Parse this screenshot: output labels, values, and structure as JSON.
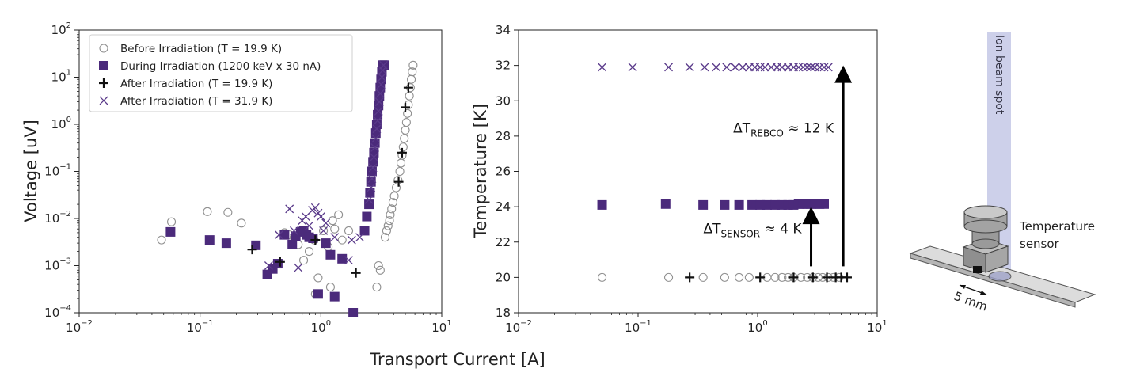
{
  "figure": {
    "xlabel_shared": "Transport Current [A]"
  },
  "chart_data": [
    {
      "type": "scatter",
      "title": "",
      "xlabel": "Transport Current [A]",
      "ylabel": "Voltage [uV]",
      "xscale": "log",
      "yscale": "log",
      "xlim": [
        0.01,
        10
      ],
      "ylim": [
        0.0001,
        100
      ],
      "xticks": [
        {
          "value": 0.01,
          "base": "10",
          "exp": "−2"
        },
        {
          "value": 0.1,
          "base": "10",
          "exp": "−1"
        },
        {
          "value": 1,
          "base": "10",
          "exp": "0"
        },
        {
          "value": 10,
          "base": "10",
          "exp": "1"
        }
      ],
      "yticks": [
        {
          "value": 0.0001,
          "base": "10",
          "exp": "−4"
        },
        {
          "value": 0.001,
          "base": "10",
          "exp": "−3"
        },
        {
          "value": 0.01,
          "base": "10",
          "exp": "−2"
        },
        {
          "value": 0.1,
          "base": "10",
          "exp": "−1"
        },
        {
          "value": 1,
          "base": "10",
          "exp": "0"
        },
        {
          "value": 10,
          "base": "10",
          "exp": "1"
        },
        {
          "value": 100,
          "base": "10",
          "exp": "2"
        }
      ],
      "grid": false,
      "legend": "top-left",
      "series": [
        {
          "name": "Before Irradiation (T = 19.9 K)",
          "marker": "circle",
          "color": "#909090",
          "points": [
            [
              0.048,
              0.0035
            ],
            [
              0.058,
              0.0085
            ],
            [
              0.115,
              0.014
            ],
            [
              0.17,
              0.0135
            ],
            [
              0.22,
              0.008
            ],
            [
              0.5,
              0.005
            ],
            [
              0.55,
              0.0045
            ],
            [
              0.6,
              0.004
            ],
            [
              0.65,
              0.0028
            ],
            [
              0.72,
              0.0013
            ],
            [
              0.8,
              0.002
            ],
            [
              0.88,
              0.0035
            ],
            [
              0.9,
              0.00025
            ],
            [
              0.95,
              0.00055
            ],
            [
              1.05,
              0.0055
            ],
            [
              1.15,
              0.0025
            ],
            [
              1.2,
              0.00035
            ],
            [
              1.25,
              0.009
            ],
            [
              1.3,
              0.006
            ],
            [
              1.4,
              0.012
            ],
            [
              1.5,
              0.0035
            ],
            [
              1.7,
              0.0055
            ],
            [
              2.9,
              0.00035
            ],
            [
              3.0,
              0.001
            ],
            [
              3.1,
              0.0008
            ],
            [
              3.4,
              0.004
            ],
            [
              3.5,
              0.0055
            ],
            [
              3.6,
              0.007
            ],
            [
              3.7,
              0.009
            ],
            [
              3.75,
              0.012
            ],
            [
              3.85,
              0.016
            ],
            [
              3.95,
              0.022
            ],
            [
              4.05,
              0.03
            ],
            [
              4.2,
              0.045
            ],
            [
              4.35,
              0.065
            ],
            [
              4.5,
              0.1
            ],
            [
              4.6,
              0.15
            ],
            [
              4.7,
              0.22
            ],
            [
              4.8,
              0.33
            ],
            [
              4.9,
              0.5
            ],
            [
              5.0,
              0.75
            ],
            [
              5.1,
              1.1
            ],
            [
              5.2,
              1.7
            ],
            [
              5.3,
              2.6
            ],
            [
              5.4,
              4.0
            ],
            [
              5.5,
              6.0
            ],
            [
              5.6,
              9.0
            ],
            [
              5.7,
              13.0
            ],
            [
              5.8,
              18.0
            ]
          ]
        },
        {
          "name": "During Irradiation (1200 keV x 30 nA)",
          "marker": "square",
          "color": "#4b2a7b",
          "points": [
            [
              0.057,
              0.0052
            ],
            [
              0.12,
              0.0035
            ],
            [
              0.165,
              0.003
            ],
            [
              0.29,
              0.0027
            ],
            [
              0.36,
              0.00065
            ],
            [
              0.4,
              0.00085
            ],
            [
              0.44,
              0.0011
            ],
            [
              0.5,
              0.0045
            ],
            [
              0.58,
              0.0028
            ],
            [
              0.62,
              0.0042
            ],
            [
              0.68,
              0.0052
            ],
            [
              0.72,
              0.0055
            ],
            [
              0.76,
              0.0045
            ],
            [
              0.8,
              0.004
            ],
            [
              0.86,
              0.0038
            ],
            [
              0.95,
              0.00025
            ],
            [
              1.1,
              0.003
            ],
            [
              1.2,
              0.0017
            ],
            [
              1.3,
              0.00022
            ],
            [
              1.5,
              0.0014
            ],
            [
              1.85,
              0.0001
            ],
            [
              2.3,
              0.0055
            ],
            [
              2.4,
              0.011
            ],
            [
              2.5,
              0.02
            ],
            [
              2.55,
              0.035
            ],
            [
              2.6,
              0.06
            ],
            [
              2.65,
              0.1
            ],
            [
              2.7,
              0.16
            ],
            [
              2.75,
              0.25
            ],
            [
              2.8,
              0.4
            ],
            [
              2.85,
              0.65
            ],
            [
              2.9,
              1.0
            ],
            [
              2.95,
              1.6
            ],
            [
              3.0,
              2.5
            ],
            [
              3.05,
              4.0
            ],
            [
              3.1,
              6.0
            ],
            [
              3.15,
              9.0
            ],
            [
              3.2,
              13.0
            ],
            [
              3.25,
              18.0
            ],
            [
              3.35,
              18.0
            ]
          ]
        },
        {
          "name": "After Irradiation (T = 19.9 K)",
          "marker": "plus",
          "color": "#111111",
          "points": [
            [
              0.27,
              0.0022
            ],
            [
              0.46,
              0.0012
            ],
            [
              0.9,
              0.0035
            ],
            [
              1.95,
              0.0007
            ],
            [
              4.4,
              0.06
            ],
            [
              4.7,
              0.25
            ],
            [
              5.0,
              2.3
            ],
            [
              5.3,
              6.0
            ]
          ]
        },
        {
          "name": "After Irradiation (T = 31.9 K)",
          "marker": "x",
          "color": "#5a3a8a",
          "points": [
            [
              0.37,
              0.001
            ],
            [
              0.45,
              0.0045
            ],
            [
              0.55,
              0.016
            ],
            [
              0.6,
              0.0055
            ],
            [
              0.65,
              0.0009
            ],
            [
              0.7,
              0.009
            ],
            [
              0.75,
              0.011
            ],
            [
              0.8,
              0.007
            ],
            [
              0.85,
              0.015
            ],
            [
              0.9,
              0.017
            ],
            [
              0.95,
              0.013
            ],
            [
              1.0,
              0.011
            ],
            [
              1.05,
              0.0055
            ],
            [
              1.1,
              0.008
            ],
            [
              1.3,
              0.004
            ],
            [
              1.7,
              0.0013
            ],
            [
              1.8,
              0.0035
            ],
            [
              2.1,
              0.004
            ],
            [
              2.5,
              0.025
            ],
            [
              2.6,
              0.045
            ],
            [
              2.65,
              0.07
            ],
            [
              2.7,
              0.12
            ],
            [
              2.75,
              0.2
            ],
            [
              2.8,
              0.32
            ],
            [
              2.85,
              0.5
            ],
            [
              2.9,
              0.8
            ],
            [
              2.95,
              1.2
            ],
            [
              3.0,
              1.9
            ],
            [
              3.05,
              3.0
            ],
            [
              3.1,
              4.5
            ],
            [
              3.15,
              7.0
            ],
            [
              3.2,
              10.0
            ],
            [
              3.25,
              14.0
            ],
            [
              3.3,
              18.0
            ]
          ]
        }
      ]
    },
    {
      "type": "scatter",
      "title": "",
      "xlabel": "Transport Current [A]",
      "ylabel": "Temperature [K]",
      "xscale": "log",
      "yscale": "linear",
      "xlim": [
        0.01,
        10
      ],
      "ylim": [
        18,
        34
      ],
      "xticks": [
        {
          "value": 0.01,
          "base": "10",
          "exp": "−2"
        },
        {
          "value": 0.1,
          "base": "10",
          "exp": "−1"
        },
        {
          "value": 1,
          "base": "10",
          "exp": "0"
        },
        {
          "value": 10,
          "base": "10",
          "exp": "1"
        }
      ],
      "yticks": [
        18,
        20,
        22,
        24,
        26,
        28,
        30,
        32,
        34
      ],
      "grid": false,
      "series": [
        {
          "name": "Before Irradiation (T = 19.9 K)",
          "marker": "circle",
          "color": "#909090",
          "points": [
            [
              0.05,
              20
            ],
            [
              0.18,
              20
            ],
            [
              0.35,
              20
            ],
            [
              0.53,
              20
            ],
            [
              0.7,
              20
            ],
            [
              0.85,
              20
            ],
            [
              1.2,
              20
            ],
            [
              1.4,
              20
            ],
            [
              1.6,
              20
            ],
            [
              1.8,
              20
            ],
            [
              2.0,
              20
            ],
            [
              2.3,
              20
            ],
            [
              2.6,
              20
            ],
            [
              2.9,
              20
            ],
            [
              3.2,
              20
            ],
            [
              3.5,
              20
            ],
            [
              3.9,
              20
            ],
            [
              4.3,
              20
            ],
            [
              4.8,
              20
            ]
          ]
        },
        {
          "name": "During Irradiation (1200 keV x 30 nA)",
          "marker": "square",
          "color": "#4b2a7b",
          "points": [
            [
              0.05,
              24.1
            ],
            [
              0.17,
              24.15
            ],
            [
              0.35,
              24.1
            ],
            [
              0.53,
              24.1
            ],
            [
              0.7,
              24.1
            ],
            [
              0.9,
              24.1
            ],
            [
              1.05,
              24.1
            ],
            [
              1.2,
              24.1
            ],
            [
              1.4,
              24.1
            ],
            [
              1.6,
              24.1
            ],
            [
              1.8,
              24.1
            ],
            [
              2.0,
              24.1
            ],
            [
              2.2,
              24.15
            ],
            [
              2.4,
              24.15
            ],
            [
              2.6,
              24.15
            ],
            [
              2.8,
              24.15
            ],
            [
              3.0,
              24.15
            ],
            [
              3.3,
              24.15
            ],
            [
              3.6,
              24.15
            ]
          ]
        },
        {
          "name": "After Irradiation (T = 19.9 K)",
          "marker": "plus",
          "color": "#111111",
          "points": [
            [
              0.27,
              20
            ],
            [
              1.05,
              20
            ],
            [
              2.0,
              20
            ],
            [
              2.9,
              20
            ],
            [
              3.8,
              20
            ],
            [
              4.5,
              20
            ],
            [
              5.0,
              20
            ],
            [
              5.6,
              20
            ]
          ]
        },
        {
          "name": "After Irradiation (T = 31.9 K)",
          "marker": "x",
          "color": "#5a3a8a",
          "points": [
            [
              0.05,
              31.9
            ],
            [
              0.09,
              31.9
            ],
            [
              0.18,
              31.9
            ],
            [
              0.27,
              31.9
            ],
            [
              0.36,
              31.9
            ],
            [
              0.45,
              31.9
            ],
            [
              0.55,
              31.9
            ],
            [
              0.65,
              31.9
            ],
            [
              0.75,
              31.9
            ],
            [
              0.85,
              31.9
            ],
            [
              0.95,
              31.9
            ],
            [
              1.05,
              31.9
            ],
            [
              1.15,
              31.9
            ],
            [
              1.3,
              31.9
            ],
            [
              1.45,
              31.9
            ],
            [
              1.6,
              31.9
            ],
            [
              1.8,
              31.9
            ],
            [
              2.0,
              31.9
            ],
            [
              2.2,
              31.9
            ],
            [
              2.4,
              31.9
            ],
            [
              2.6,
              31.9
            ],
            [
              2.8,
              31.9
            ],
            [
              3.0,
              31.9
            ],
            [
              3.3,
              31.9
            ],
            [
              3.6,
              31.9
            ],
            [
              3.9,
              31.9
            ]
          ]
        }
      ],
      "annotations": [
        {
          "id": "dt-rebco",
          "prefix": "ΔT",
          "sub": "REBCO",
          "suffix": " ≈ 12 K",
          "x_start": 5.2,
          "y_start": 20,
          "y_end": 32
        },
        {
          "id": "dt-sensor",
          "prefix": "ΔT",
          "sub": "SENSOR",
          "suffix": " ≈ 4 K",
          "x_start": 2.8,
          "y_start": 20,
          "y_end": 24
        }
      ]
    }
  ],
  "schematic": {
    "beam_label": "Ion beam spot",
    "sensor_label_line1": "Temperature",
    "sensor_label_line2": "sensor",
    "dimension_label": "5 mm",
    "colors": {
      "beam": "#c8cbe8",
      "tape": "#dcdcdc",
      "sensor": "#a9a9a9"
    }
  }
}
